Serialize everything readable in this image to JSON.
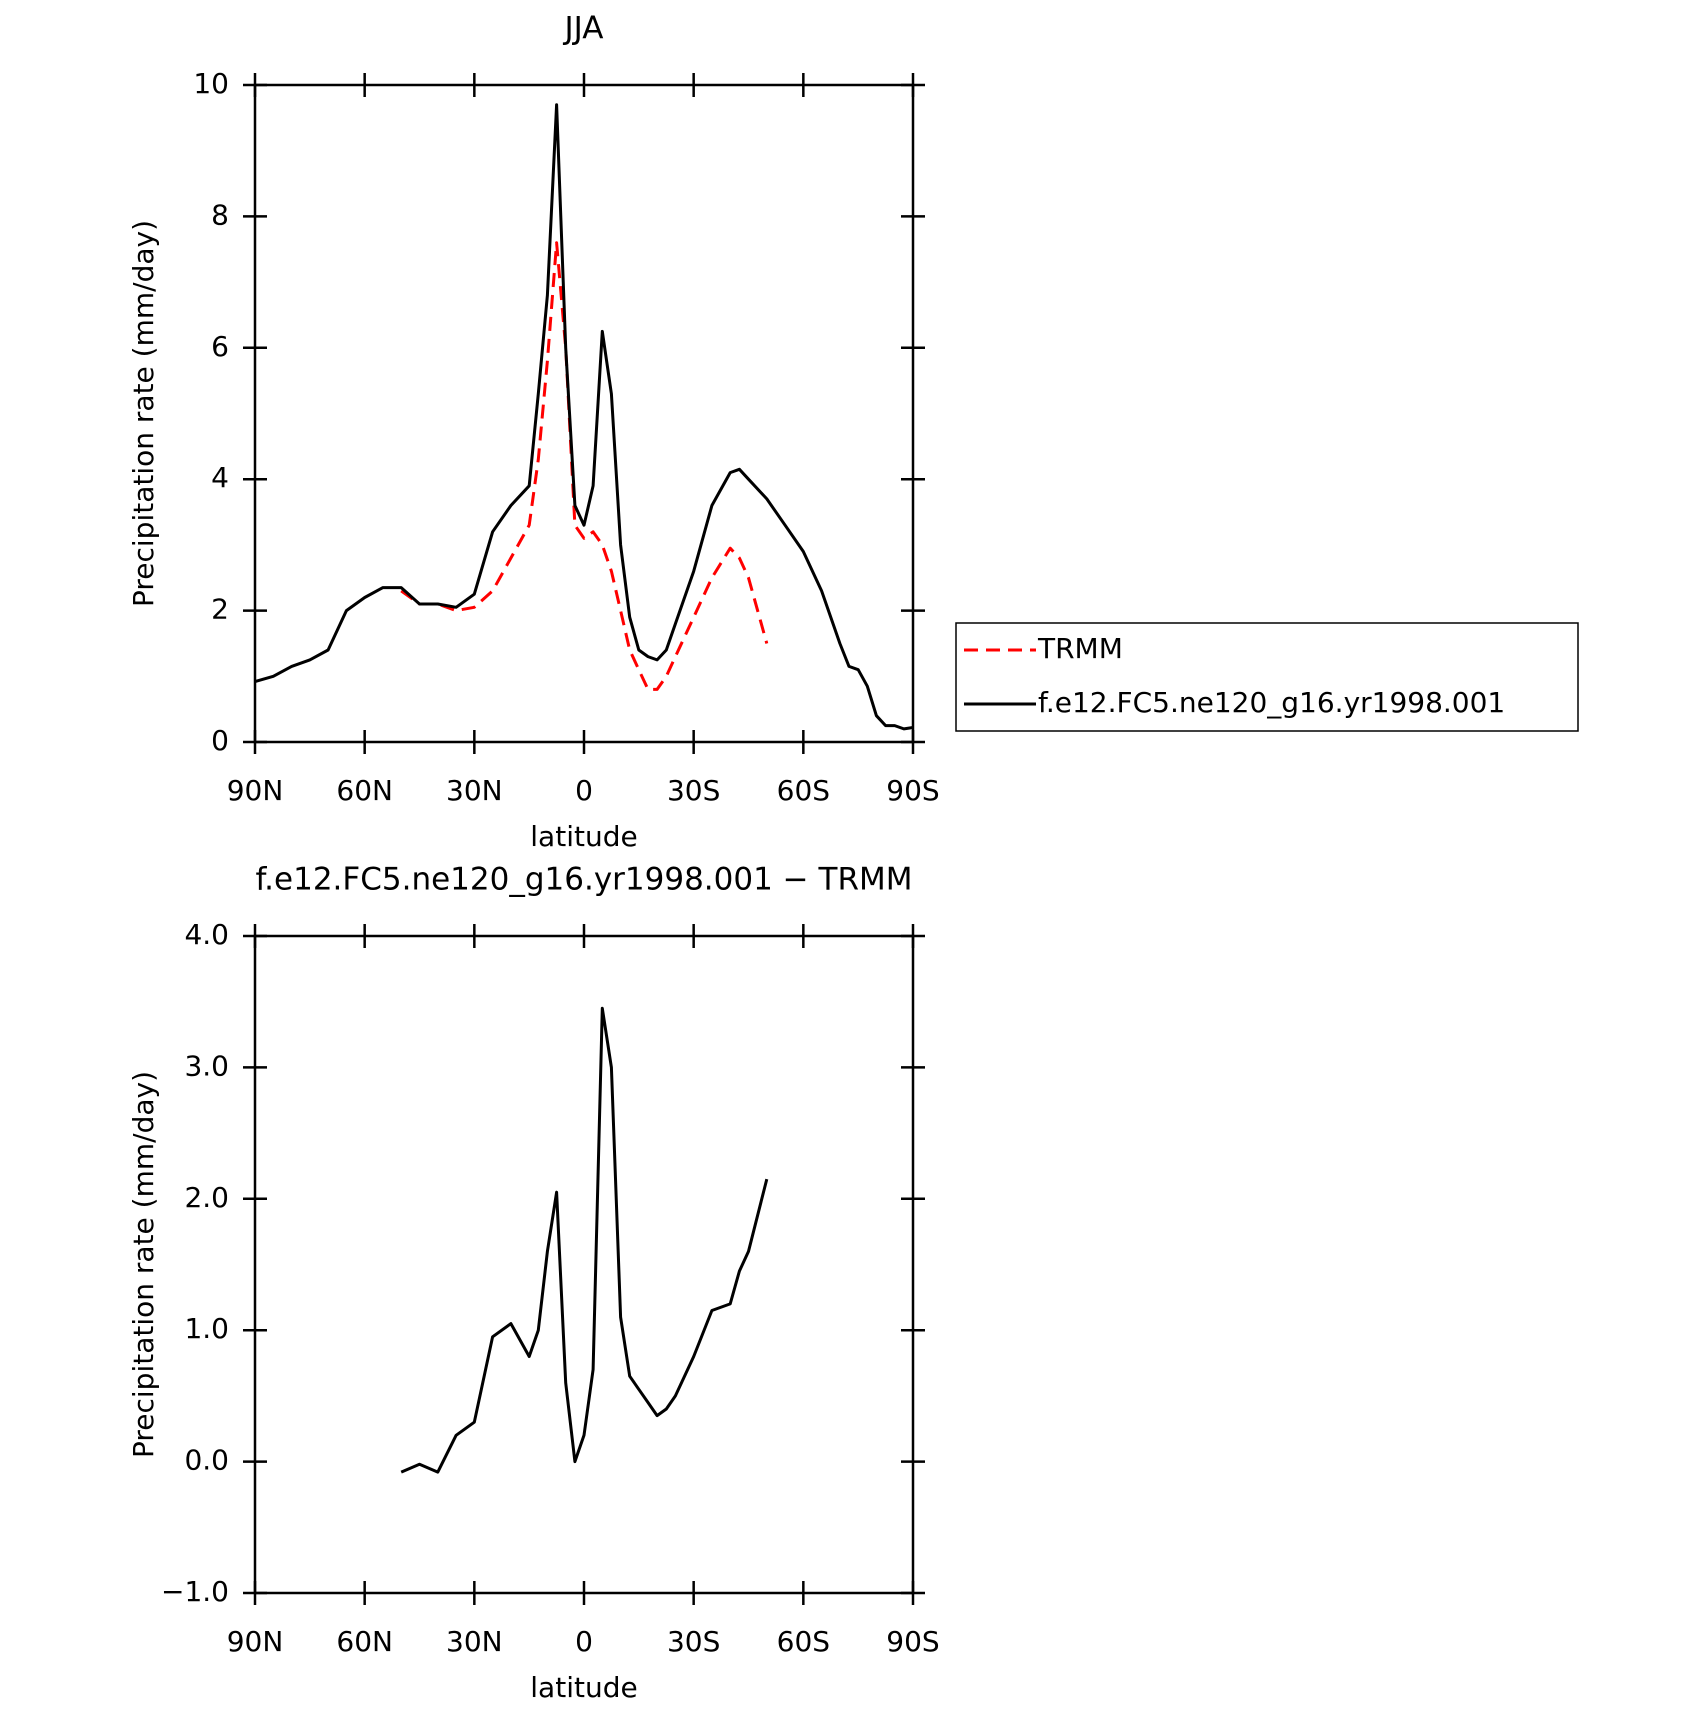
{
  "chart_data": [
    {
      "type": "line",
      "title": "JJA",
      "xlabel": "latitude",
      "ylabel": "Precipitation rate (mm/day)",
      "x": [
        90,
        85,
        80,
        75,
        70,
        65,
        60,
        55,
        50,
        45,
        40,
        35,
        30,
        25,
        20,
        15,
        12.5,
        10,
        7.5,
        5,
        2.5,
        0,
        -2.5,
        -5,
        -7.5,
        -10,
        -12.5,
        -15,
        -17.5,
        -20,
        -22.5,
        -25,
        -30,
        -35,
        -40,
        -42.5,
        -45,
        -50,
        -55,
        -60,
        -65,
        -70,
        -72.5,
        -75,
        -77.5,
        -80,
        -82.5,
        -85,
        -87.5,
        -90
      ],
      "series": [
        {
          "name": "TRMM",
          "color": "#ff0000",
          "line_style": "dashed",
          "values": [
            null,
            null,
            null,
            null,
            null,
            null,
            null,
            null,
            2.3,
            2.1,
            2.1,
            2.0,
            2.05,
            2.3,
            2.8,
            3.3,
            4.3,
            5.8,
            7.6,
            6.0,
            3.3,
            3.1,
            3.2,
            3.0,
            2.6,
            2.0,
            1.4,
            1.1,
            0.8,
            0.8,
            1.0,
            1.3,
            1.9,
            2.5,
            2.95,
            2.8,
            2.5,
            1.5,
            null,
            null,
            null,
            null,
            null,
            null,
            null,
            null,
            null,
            null,
            null,
            null
          ]
        },
        {
          "name": "f.e12.FC5.ne120_g16.yr1998.001",
          "color": "#000000",
          "line_style": "solid",
          "values": [
            0.92,
            1.0,
            1.15,
            1.25,
            1.4,
            2.0,
            2.2,
            2.35,
            2.35,
            2.1,
            2.1,
            2.05,
            2.25,
            3.2,
            3.6,
            3.9,
            5.3,
            6.8,
            9.7,
            6.0,
            3.6,
            3.3,
            3.9,
            6.25,
            5.3,
            3.0,
            1.9,
            1.4,
            1.3,
            1.25,
            1.4,
            1.8,
            2.6,
            3.6,
            4.1,
            4.15,
            4.0,
            3.7,
            3.3,
            2.9,
            2.3,
            1.5,
            1.15,
            1.1,
            0.85,
            0.4,
            0.25,
            0.25,
            0.2,
            0.22
          ]
        }
      ],
      "xlim": [
        90,
        -90
      ],
      "xticks": [
        {
          "value": 90,
          "label": "90N"
        },
        {
          "value": 60,
          "label": "60N"
        },
        {
          "value": 30,
          "label": "30N"
        },
        0,
        {
          "value": -30,
          "label": "30S"
        },
        {
          "value": -60,
          "label": "60S"
        },
        {
          "value": -90,
          "label": "90S"
        }
      ],
      "ylim": [
        0,
        10
      ],
      "yticks": [
        0,
        2,
        4,
        6,
        8,
        10
      ],
      "legend": "right"
    },
    {
      "type": "line",
      "title": "f.e12.FC5.ne120_g16.yr1998.001 − TRMM",
      "xlabel": "latitude",
      "ylabel": "Precipitation rate (mm/day)",
      "x": [
        90,
        85,
        80,
        75,
        70,
        65,
        60,
        55,
        50,
        45,
        40,
        35,
        30,
        25,
        20,
        15,
        12.5,
        10,
        7.5,
        5,
        2.5,
        0,
        -2.5,
        -5,
        -7.5,
        -10,
        -12.5,
        -15,
        -17.5,
        -20,
        -22.5,
        -25,
        -30,
        -35,
        -40,
        -42.5,
        -45,
        -50,
        -55,
        -60,
        -65,
        -70,
        -72.5,
        -75,
        -77.5,
        -80,
        -82.5,
        -85,
        -87.5,
        -90
      ],
      "series": [
        {
          "color": "#000000",
          "line_style": "solid",
          "values": [
            null,
            null,
            null,
            null,
            null,
            null,
            null,
            null,
            -0.08,
            -0.02,
            -0.08,
            0.2,
            0.3,
            0.95,
            1.05,
            0.8,
            1.0,
            1.6,
            2.05,
            0.6,
            0.0,
            0.2,
            0.7,
            3.45,
            3.0,
            1.1,
            0.65,
            0.55,
            0.45,
            0.35,
            0.4,
            0.5,
            0.8,
            1.15,
            1.2,
            1.45,
            1.6,
            2.15,
            null,
            null,
            null,
            null,
            null,
            null,
            null,
            null,
            null,
            null,
            null,
            null
          ]
        }
      ],
      "xlim": [
        90,
        -90
      ],
      "xticks": [
        {
          "value": 90,
          "label": "90N"
        },
        {
          "value": 60,
          "label": "60N"
        },
        {
          "value": 30,
          "label": "30N"
        },
        0,
        {
          "value": -30,
          "label": "30S"
        },
        {
          "value": -60,
          "label": "60S"
        },
        {
          "value": -90,
          "label": "90S"
        }
      ],
      "ylim": [
        -1,
        4
      ],
      "yticks": [
        {
          "value": -1,
          "label": "−1.0"
        },
        {
          "value": 0,
          "label": "0.0"
        },
        {
          "value": 1,
          "label": "1.0"
        },
        {
          "value": 2,
          "label": "2.0"
        },
        {
          "value": 3,
          "label": "3.0"
        },
        {
          "value": 4,
          "label": "4.0"
        }
      ]
    }
  ]
}
